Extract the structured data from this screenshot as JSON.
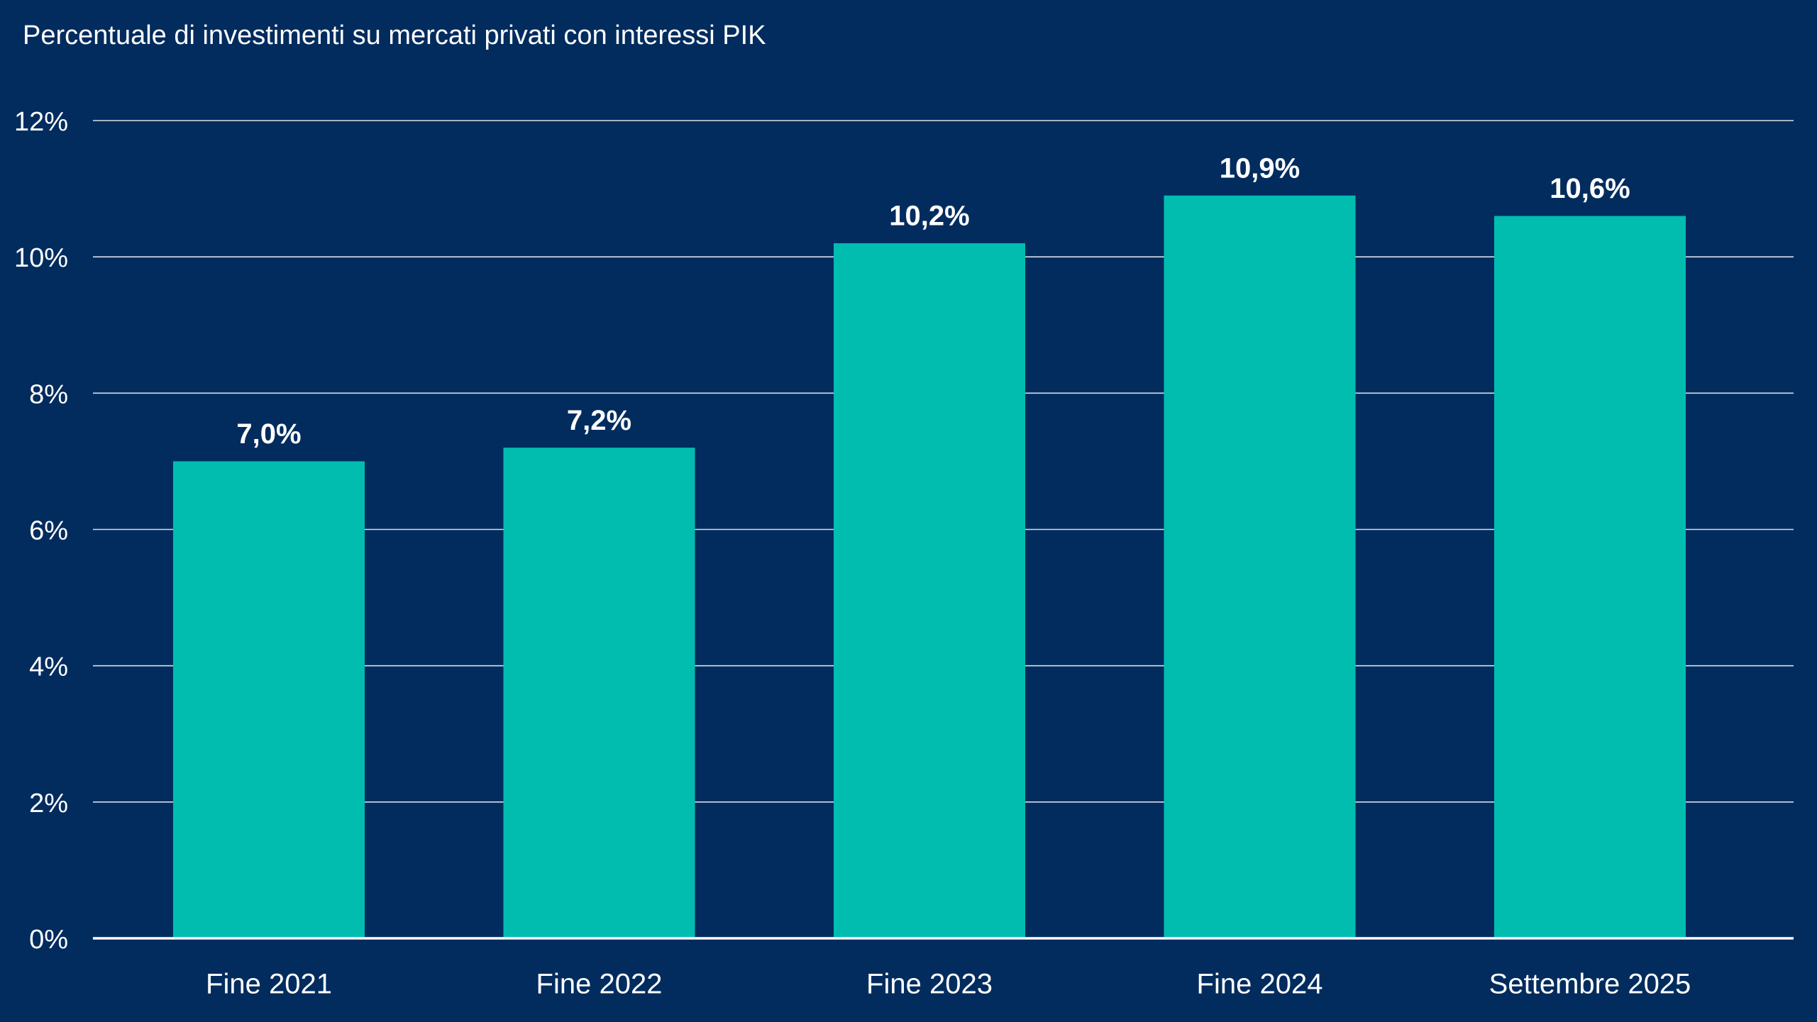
{
  "chart_data": {
    "type": "bar",
    "title": "Percentuale di investimenti su mercati privati con interessi PIK",
    "categories": [
      "Fine 2021",
      "Fine 2022",
      "Fine 2023",
      "Fine 2024",
      "Settembre 2025"
    ],
    "values": [
      7.0,
      7.2,
      10.2,
      10.9,
      10.6
    ],
    "value_labels": [
      "7,0%",
      "7,2%",
      "10,2%",
      "10,9%",
      "10,6%"
    ],
    "color": "#00bdb0",
    "ylim": [
      0,
      12
    ],
    "yticks": [
      {
        "value": 0,
        "label": "0%"
      },
      {
        "value": 2,
        "label": "2%"
      },
      {
        "value": 4,
        "label": "4%"
      },
      {
        "value": 6,
        "label": "6%"
      },
      {
        "value": 8,
        "label": "8%"
      },
      {
        "value": 10,
        "label": "10%"
      },
      {
        "value": 12,
        "label": "12%"
      }
    ],
    "grid": true
  }
}
